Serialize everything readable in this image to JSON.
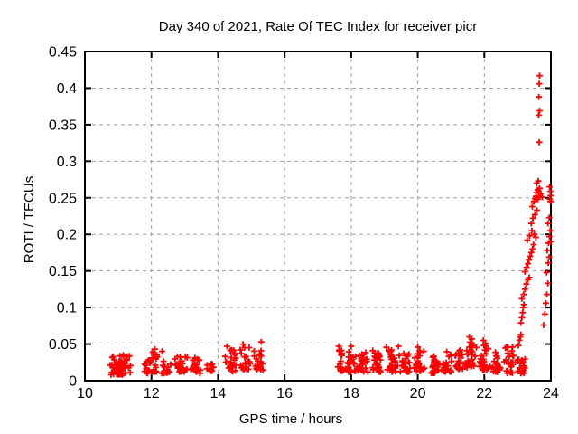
{
  "page": {
    "background": "#ffffff"
  },
  "chart_data": {
    "type": "scatter",
    "title": "Day 340 of 2021, Rate Of TEC Index for receiver picr",
    "xlabel": "GPS time / hours",
    "ylabel": "ROTI / TECUs",
    "xlim": [
      10,
      24
    ],
    "ylim": [
      0,
      0.45
    ],
    "xticks": [
      10,
      12,
      14,
      16,
      18,
      20,
      22,
      24
    ],
    "xtick_labels": [
      "10",
      "12",
      "14",
      "16",
      "18",
      "20",
      "22",
      "24"
    ],
    "yticks": [
      0,
      0.05,
      0.1,
      0.15,
      0.2,
      0.25,
      0.3,
      0.35,
      0.4,
      0.45
    ],
    "ytick_labels": [
      "0",
      "0.05",
      "0.1",
      "0.15",
      "0.2",
      "0.25",
      "0.3",
      "0.35",
      "0.4",
      "0.45"
    ],
    "grid": "dashed",
    "legend": "none",
    "marker": "plus",
    "colors": {
      "points": "#ff0000",
      "grid": "#9e9e9e",
      "axis": "#000000",
      "text": "#000000"
    },
    "series": [
      {
        "name": "ROTI",
        "clusters": [
          {
            "x0": 10.68,
            "x1": 11.42,
            "n": 55,
            "y0": 0.008,
            "y1": 0.034
          },
          {
            "x0": 11.76,
            "x1": 12.0,
            "n": 16,
            "y0": 0.01,
            "y1": 0.03
          },
          {
            "x0": 12.0,
            "x1": 12.2,
            "n": 14,
            "y0": 0.012,
            "y1": 0.04
          },
          {
            "x0": 12.22,
            "x1": 12.6,
            "n": 16,
            "y0": 0.01,
            "y1": 0.028
          },
          {
            "x0": 12.63,
            "x1": 13.12,
            "n": 22,
            "y0": 0.012,
            "y1": 0.034
          },
          {
            "x0": 13.17,
            "x1": 13.5,
            "n": 18,
            "y0": 0.01,
            "y1": 0.034
          },
          {
            "x0": 13.58,
            "x1": 13.98,
            "n": 12,
            "y0": 0.013,
            "y1": 0.025
          },
          {
            "x0": 14.2,
            "x1": 14.62,
            "n": 22,
            "y0": 0.012,
            "y1": 0.042
          },
          {
            "x0": 14.62,
            "x1": 15.0,
            "n": 22,
            "y0": 0.015,
            "y1": 0.046
          },
          {
            "x0": 15.0,
            "x1": 15.42,
            "n": 20,
            "y0": 0.014,
            "y1": 0.042
          },
          {
            "x0": 17.57,
            "x1": 17.8,
            "n": 15,
            "y0": 0.013,
            "y1": 0.044
          },
          {
            "x0": 17.8,
            "x1": 18.15,
            "n": 24,
            "y0": 0.012,
            "y1": 0.04
          },
          {
            "x0": 18.15,
            "x1": 18.55,
            "n": 26,
            "y0": 0.012,
            "y1": 0.042
          },
          {
            "x0": 18.55,
            "x1": 19.0,
            "n": 28,
            "y0": 0.012,
            "y1": 0.038
          },
          {
            "x0": 19.0,
            "x1": 19.45,
            "n": 28,
            "y0": 0.012,
            "y1": 0.046
          },
          {
            "x0": 19.45,
            "x1": 19.85,
            "n": 26,
            "y0": 0.012,
            "y1": 0.038
          },
          {
            "x0": 19.85,
            "x1": 20.25,
            "n": 28,
            "y0": 0.013,
            "y1": 0.044
          },
          {
            "x0": 20.25,
            "x1": 20.7,
            "n": 28,
            "y0": 0.01,
            "y1": 0.036
          },
          {
            "x0": 20.7,
            "x1": 21.1,
            "n": 26,
            "y0": 0.012,
            "y1": 0.04
          },
          {
            "x0": 21.1,
            "x1": 21.4,
            "n": 22,
            "y0": 0.015,
            "y1": 0.044
          },
          {
            "x0": 21.4,
            "x1": 21.8,
            "n": 32,
            "y0": 0.018,
            "y1": 0.058
          },
          {
            "x0": 21.8,
            "x1": 22.15,
            "n": 28,
            "y0": 0.014,
            "y1": 0.052
          },
          {
            "x0": 22.15,
            "x1": 22.55,
            "n": 26,
            "y0": 0.012,
            "y1": 0.04
          },
          {
            "x0": 22.55,
            "x1": 22.95,
            "n": 26,
            "y0": 0.01,
            "y1": 0.046
          },
          {
            "x0": 22.95,
            "x1": 23.35,
            "n": 18,
            "y0": 0.01,
            "y1": 0.03
          }
        ],
        "peak_points": [
          [
            11.15,
            0.035
          ],
          [
            12.1,
            0.043
          ],
          [
            12.32,
            0.04
          ],
          [
            14.27,
            0.047
          ],
          [
            14.75,
            0.05
          ],
          [
            15.3,
            0.053
          ],
          [
            17.63,
            0.047
          ],
          [
            18.0,
            0.047
          ],
          [
            18.65,
            0.041
          ],
          [
            19.42,
            0.047
          ],
          [
            20.0,
            0.046
          ],
          [
            21.55,
            0.06
          ],
          [
            21.63,
            0.057
          ],
          [
            21.97,
            0.055
          ],
          [
            22.85,
            0.046
          ]
        ],
        "spike_points": [
          [
            23.02,
            0.048
          ],
          [
            23.05,
            0.055
          ],
          [
            23.08,
            0.06
          ],
          [
            23.1,
            0.063
          ],
          [
            23.1,
            0.079
          ],
          [
            23.13,
            0.086
          ],
          [
            23.15,
            0.093
          ],
          [
            23.17,
            0.1
          ],
          [
            23.19,
            0.104
          ],
          [
            23.13,
            0.112
          ],
          [
            23.18,
            0.118
          ],
          [
            23.22,
            0.125
          ],
          [
            23.26,
            0.132
          ],
          [
            23.31,
            0.138
          ],
          [
            23.35,
            0.141
          ],
          [
            23.22,
            0.149
          ],
          [
            23.27,
            0.155
          ],
          [
            23.31,
            0.16
          ],
          [
            23.34,
            0.165
          ],
          [
            23.38,
            0.17
          ],
          [
            23.41,
            0.175
          ],
          [
            23.45,
            0.18
          ],
          [
            23.48,
            0.186
          ],
          [
            23.29,
            0.192
          ],
          [
            23.36,
            0.198
          ],
          [
            23.43,
            0.205
          ],
          [
            23.5,
            0.2
          ],
          [
            23.55,
            0.196
          ],
          [
            23.41,
            0.215
          ],
          [
            23.46,
            0.222
          ],
          [
            23.52,
            0.227
          ],
          [
            23.58,
            0.233
          ],
          [
            23.44,
            0.238
          ],
          [
            23.49,
            0.245
          ],
          [
            23.52,
            0.249
          ],
          [
            23.55,
            0.252
          ],
          [
            23.58,
            0.25
          ],
          [
            23.61,
            0.248
          ],
          [
            23.64,
            0.253
          ],
          [
            23.56,
            0.257
          ],
          [
            23.6,
            0.261
          ],
          [
            23.63,
            0.259
          ],
          [
            23.66,
            0.263
          ],
          [
            23.7,
            0.256
          ],
          [
            23.74,
            0.251
          ],
          [
            23.57,
            0.27
          ],
          [
            23.62,
            0.273
          ],
          [
            23.65,
            0.326
          ],
          [
            23.63,
            0.363
          ],
          [
            23.66,
            0.369
          ],
          [
            23.64,
            0.388
          ],
          [
            23.65,
            0.406
          ],
          [
            23.66,
            0.417
          ],
          [
            23.78,
            0.076
          ],
          [
            23.82,
            0.091
          ],
          [
            23.85,
            0.106
          ],
          [
            23.88,
            0.118
          ],
          [
            23.91,
            0.133
          ],
          [
            23.87,
            0.148
          ],
          [
            23.92,
            0.161
          ],
          [
            23.95,
            0.169
          ],
          [
            23.89,
            0.178
          ],
          [
            23.93,
            0.188
          ],
          [
            23.96,
            0.197
          ],
          [
            23.98,
            0.205
          ],
          [
            23.91,
            0.215
          ],
          [
            23.95,
            0.223
          ],
          [
            23.97,
            0.248
          ],
          [
            23.99,
            0.253
          ],
          [
            23.99,
            0.245
          ],
          [
            23.98,
            0.259
          ],
          [
            23.99,
            0.19
          ],
          [
            23.96,
            0.265
          ]
        ]
      }
    ]
  }
}
